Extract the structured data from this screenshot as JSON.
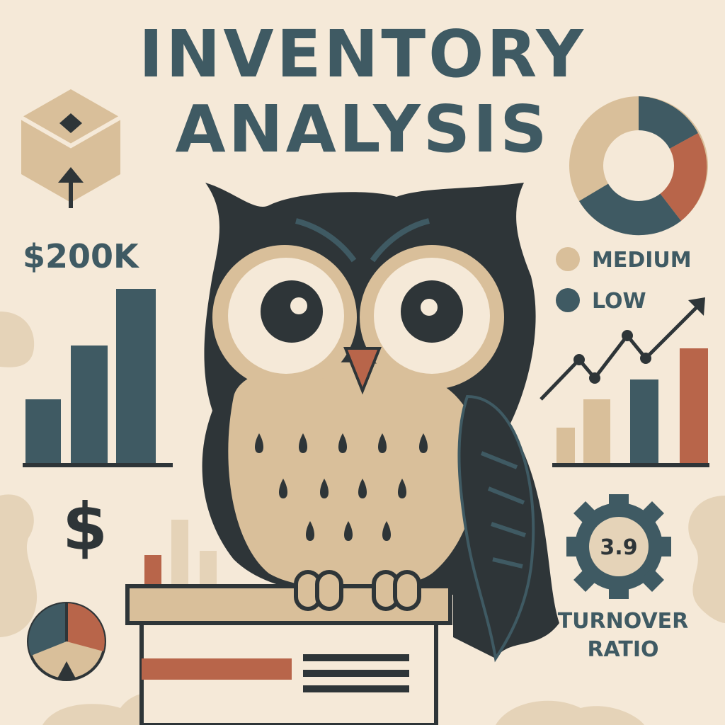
{
  "title": {
    "line1": "INVENTORY",
    "line2": "ANALYSIS"
  },
  "kpi": {
    "value": "$200K"
  },
  "legend": {
    "medium": "MEDIUM",
    "low": "LOW"
  },
  "currency_symbol": "$",
  "turnover": {
    "value": "3.9",
    "label_line1": "TURNOVER",
    "label_line2": "RATIO"
  },
  "icons": [
    "box-icon",
    "up-arrow-icon",
    "donut-chart-icon",
    "owl-illustration",
    "gear-icon",
    "pie-chart-icon",
    "trend-line-icon"
  ],
  "colors": {
    "background": "#f5e9d8",
    "teal": "#3f5a63",
    "tan": "#d9bf9a",
    "rust": "#b8654a",
    "dark": "#2e3538"
  }
}
